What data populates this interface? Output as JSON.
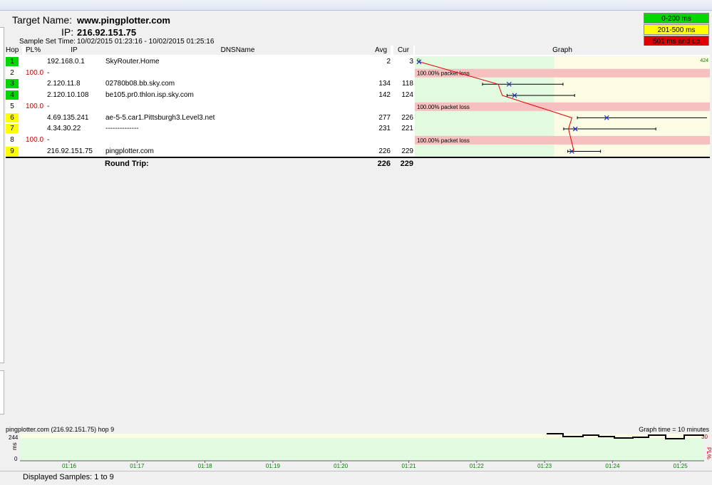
{
  "header": {
    "target_label": "Target Name:",
    "target_value": "www.pingplotter.com",
    "ip_label": "IP:",
    "ip_value": "216.92.151.75",
    "sample_label": "Sample Set Time:",
    "sample_value": "10/02/2015 01:23:16 - 10/02/2015 01:25:16"
  },
  "legend": [
    {
      "label": "0-200 ms",
      "color": "#00d800",
      "text": "#000"
    },
    {
      "label": "201-500 ms",
      "color": "#ffff00",
      "text": "#000"
    },
    {
      "label": "501 ms and up",
      "color": "#e00000",
      "text": "#000"
    }
  ],
  "columns": {
    "hop": "Hop",
    "pl": "PL%",
    "ip": "IP",
    "dns": "DNSName",
    "avg": "Avg",
    "cur": "Cur",
    "graph": "Graph"
  },
  "rows": [
    {
      "hop": "1",
      "pl": "",
      "ip": "192.168.0.1",
      "dns": "SkyRouter.Home",
      "avg": "2",
      "cur": "3",
      "hopcolor": "#00d800"
    },
    {
      "hop": "2",
      "pl": "100.0",
      "ip": "-",
      "dns": "",
      "avg": "",
      "cur": "",
      "hopcolor": ""
    },
    {
      "hop": "3",
      "pl": "",
      "ip": "2.120.11.8",
      "dns": "02780b08.bb.sky.com",
      "avg": "134",
      "cur": "118",
      "hopcolor": "#00d800"
    },
    {
      "hop": "4",
      "pl": "",
      "ip": "2.120.10.108",
      "dns": "be105.pr0.thlon.isp.sky.com",
      "avg": "142",
      "cur": "124",
      "hopcolor": "#00d800"
    },
    {
      "hop": "5",
      "pl": "100.0",
      "ip": "-",
      "dns": "",
      "avg": "",
      "cur": "",
      "hopcolor": ""
    },
    {
      "hop": "6",
      "pl": "",
      "ip": "4.69.135.241",
      "dns": "ae-5-5.car1.Pittsburgh3.Level3.net",
      "avg": "277",
      "cur": "226",
      "hopcolor": "#ffff00"
    },
    {
      "hop": "7",
      "pl": "",
      "ip": "4.34.30.22",
      "dns": "--------------",
      "avg": "231",
      "cur": "221",
      "hopcolor": "#ffff00"
    },
    {
      "hop": "8",
      "pl": "100.0",
      "ip": "-",
      "dns": "",
      "avg": "",
      "cur": "",
      "hopcolor": ""
    },
    {
      "hop": "9",
      "pl": "",
      "ip": "216.92.151.75",
      "dns": "pingplotter.com",
      "avg": "226",
      "cur": "229",
      "hopcolor": "#ffff00"
    }
  ],
  "round_trip": {
    "label": "Round Trip:",
    "avg": "226",
    "cur": "229"
  },
  "graph": {
    "scale_min": "0",
    "scale_max": "424",
    "loss_label": "100.00% packet loss",
    "points": [
      {
        "hop": "1",
        "avg": 2,
        "min": 2,
        "max": 2
      },
      {
        "hop": "3",
        "avg": 134,
        "min": 95,
        "max": 213
      },
      {
        "hop": "4",
        "avg": 142,
        "min": 131,
        "max": 230
      },
      {
        "hop": "6",
        "avg": 277,
        "min": 234,
        "max": 481
      },
      {
        "hop": "7",
        "avg": 231,
        "min": 214,
        "max": 349
      },
      {
        "hop": "9",
        "avg": 226,
        "min": 220,
        "max": 268
      }
    ],
    "loss_hops": [
      "2",
      "5",
      "8"
    ],
    "cur_line": [
      3,
      118,
      124,
      226,
      221,
      229
    ]
  },
  "mini": {
    "title": "pingplotter.com (216.92.151.75) hop 9",
    "graph_time": "Graph time = 10 minutes",
    "y_top": "244",
    "y_unit": "ms",
    "y_zero": "0",
    "pl_top": "30",
    "pl_unit": "PL%",
    "ticks": [
      "01:16",
      "01:17",
      "01:18",
      "01:19",
      "01:20",
      "01:21",
      "01:22",
      "01:23",
      "01:24",
      "01:25"
    ]
  },
  "status": {
    "text": "Displayed Samples: 1 to 9"
  }
}
